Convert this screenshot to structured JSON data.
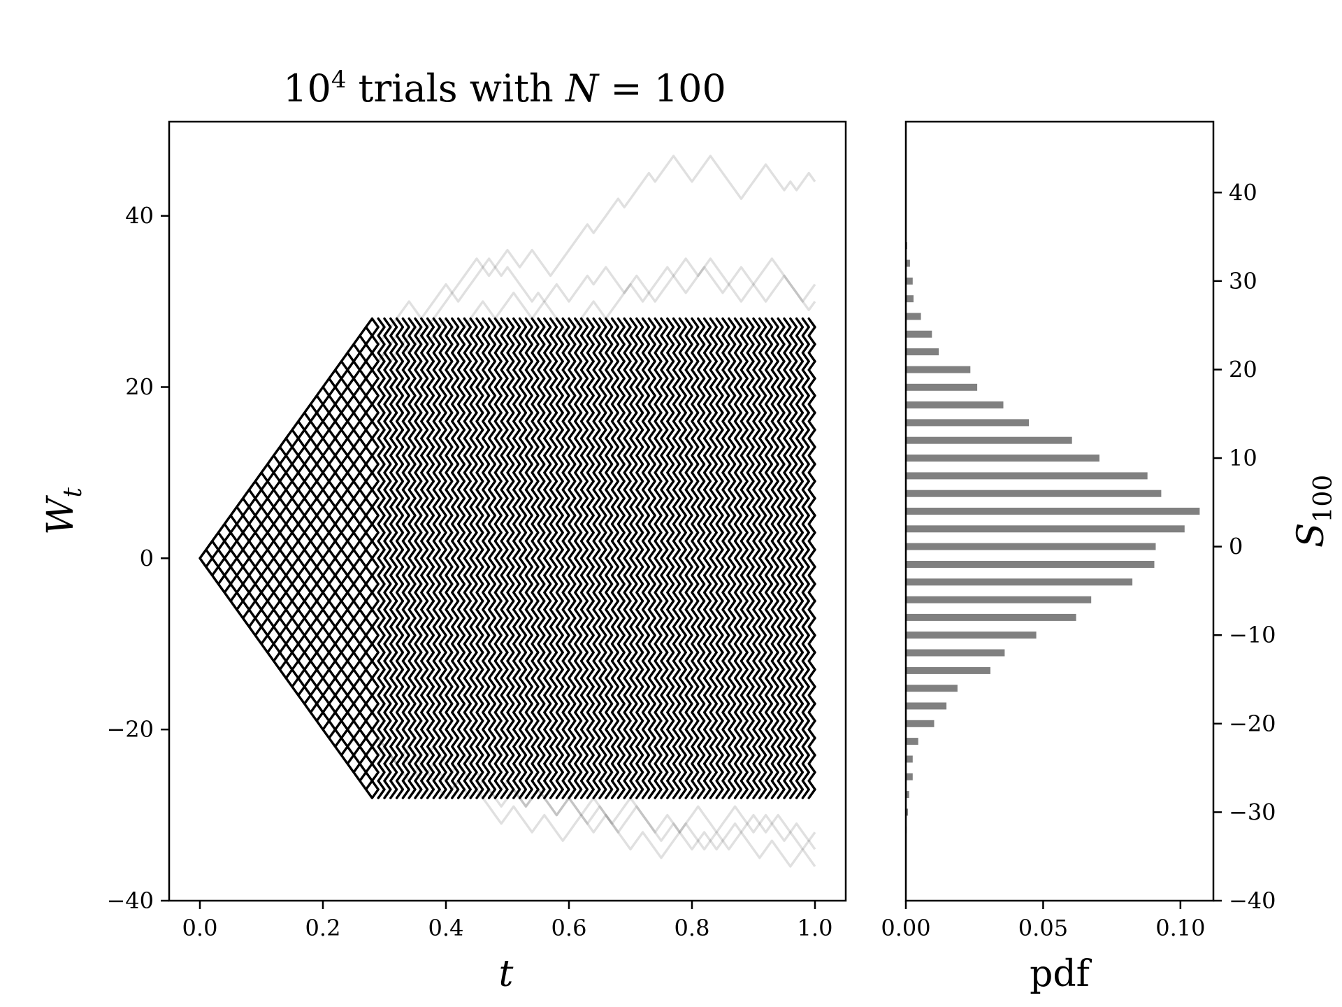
{
  "chart_data": [
    {
      "type": "line",
      "title_main": "10",
      "title_sup": "4",
      "title_rest": " trials with ",
      "title_var": "N",
      "title_eq": " = 100",
      "xlabel": "t",
      "ylabel_main": "W",
      "ylabel_sub": "t",
      "xlim": [
        -0.05,
        1.05
      ],
      "ylim": [
        -40,
        51
      ],
      "xticks": [
        "0.0",
        "0.2",
        "0.4",
        "0.6",
        "0.8",
        "1.0"
      ],
      "xtick_values": [
        0.0,
        0.2,
        0.4,
        0.6,
        0.8,
        1.0
      ],
      "yticks": [
        "−40",
        "−20",
        "0",
        "20",
        "40"
      ],
      "ytick_values": [
        -40,
        -20,
        0,
        20,
        40
      ],
      "steps": 100,
      "lattice_bound": [
        -28,
        28
      ],
      "line_color": "#000000",
      "series": [
        {
          "values": [
            0,
            1,
            2,
            3,
            4,
            5,
            6,
            7,
            8,
            9,
            10,
            11,
            12,
            13,
            14,
            15,
            16,
            17,
            18,
            17,
            16,
            17,
            18,
            19,
            20,
            21,
            20,
            21,
            22,
            23,
            24,
            25,
            26,
            25,
            24,
            25,
            26,
            27,
            28,
            29,
            30,
            31,
            32,
            33,
            34,
            35,
            34,
            33,
            34,
            35,
            36,
            35,
            34,
            35,
            36,
            35,
            34,
            33,
            34,
            35,
            36,
            37,
            38,
            39,
            38,
            39,
            40,
            41,
            42,
            41,
            42,
            43,
            44,
            45,
            44,
            45,
            46,
            47,
            46,
            45,
            44,
            45,
            46,
            47,
            46,
            45,
            44,
            43,
            42,
            43,
            44,
            45,
            46,
            45,
            44,
            43,
            44,
            43,
            44,
            45,
            44
          ]
        },
        {
          "values": [
            0,
            1,
            2,
            3,
            4,
            5,
            6,
            7,
            8,
            9,
            10,
            11,
            12,
            13,
            14,
            15,
            16,
            15,
            16,
            17,
            18,
            19,
            20,
            21,
            22,
            23,
            22,
            23,
            24,
            25,
            26,
            27,
            28,
            29,
            30,
            29,
            28,
            29,
            30,
            31,
            32,
            31,
            30,
            31,
            32,
            33,
            34,
            35,
            34,
            33,
            34,
            33,
            32,
            31,
            30,
            31,
            30,
            31,
            32,
            31,
            30,
            31,
            32,
            33,
            32,
            33,
            34,
            33,
            32,
            31,
            32,
            33,
            32,
            31,
            30,
            31,
            32,
            33,
            34,
            35,
            34,
            33,
            34,
            35,
            34,
            33,
            32,
            31,
            30,
            31,
            32,
            33,
            34,
            35,
            34,
            33,
            32,
            31,
            30,
            29,
            30
          ]
        },
        {
          "values": [
            0,
            1,
            2,
            3,
            4,
            5,
            6,
            7,
            8,
            9,
            10,
            11,
            12,
            13,
            12,
            13,
            14,
            15,
            16,
            17,
            18,
            17,
            16,
            17,
            18,
            19,
            20,
            21,
            22,
            23,
            24,
            23,
            24,
            25,
            26,
            27,
            26,
            25,
            26,
            27,
            28,
            27,
            26,
            27,
            28,
            29,
            30,
            29,
            28,
            29,
            30,
            31,
            30,
            29,
            28,
            29,
            30,
            29,
            28,
            27,
            26,
            27,
            28,
            29,
            30,
            29,
            28,
            29,
            30,
            31,
            32,
            31,
            30,
            31,
            32,
            33,
            34,
            33,
            32,
            31,
            32,
            33,
            34,
            33,
            32,
            31,
            32,
            33,
            34,
            33,
            32,
            31,
            30,
            31,
            32,
            33,
            32,
            31,
            30,
            31,
            32
          ]
        },
        {
          "values": [
            0,
            -1,
            -2,
            -3,
            -4,
            -5,
            -6,
            -7,
            -8,
            -9,
            -10,
            -11,
            -12,
            -13,
            -14,
            -15,
            -16,
            -17,
            -18,
            -17,
            -16,
            -17,
            -18,
            -19,
            -20,
            -21,
            -22,
            -23,
            -22,
            -21,
            -22,
            -23,
            -24,
            -23,
            -22,
            -23,
            -24,
            -23,
            -22,
            -23,
            -24,
            -25,
            -24,
            -23,
            -24,
            -25,
            -26,
            -27,
            -28,
            -27,
            -26,
            -27,
            -28,
            -29,
            -28,
            -27,
            -28,
            -29,
            -30,
            -29,
            -28,
            -29,
            -30,
            -31,
            -30,
            -29,
            -30,
            -31,
            -32,
            -31,
            -30,
            -29,
            -30,
            -31,
            -32,
            -33,
            -32,
            -31,
            -32,
            -33,
            -34,
            -33,
            -32,
            -33,
            -34,
            -33,
            -32,
            -31,
            -32,
            -33,
            -34,
            -35,
            -34,
            -33,
            -34,
            -35,
            -36,
            -35,
            -34,
            -35,
            -36
          ]
        },
        {
          "values": [
            0,
            -1,
            -2,
            -3,
            -4,
            -5,
            -6,
            -7,
            -8,
            -9,
            -10,
            -11,
            -12,
            -13,
            -14,
            -15,
            -16,
            -15,
            -16,
            -17,
            -18,
            -19,
            -20,
            -19,
            -20,
            -21,
            -22,
            -21,
            -20,
            -21,
            -22,
            -23,
            -24,
            -23,
            -24,
            -25,
            -26,
            -25,
            -24,
            -25,
            -26,
            -27,
            -26,
            -25,
            -26,
            -27,
            -28,
            -29,
            -30,
            -31,
            -30,
            -29,
            -30,
            -31,
            -32,
            -31,
            -30,
            -31,
            -32,
            -33,
            -32,
            -31,
            -30,
            -31,
            -32,
            -31,
            -30,
            -31,
            -32,
            -33,
            -34,
            -33,
            -32,
            -33,
            -34,
            -35,
            -34,
            -33,
            -32,
            -31,
            -32,
            -33,
            -34,
            -33,
            -32,
            -33,
            -34,
            -33,
            -32,
            -31,
            -30,
            -31,
            -32,
            -31,
            -30,
            -31,
            -32,
            -33,
            -34,
            -33,
            -34
          ]
        },
        {
          "values": [
            0,
            -1,
            -2,
            -3,
            -4,
            -5,
            -6,
            -7,
            -8,
            -9,
            -10,
            -11,
            -12,
            -13,
            -14,
            -13,
            -14,
            -15,
            -16,
            -17,
            -16,
            -17,
            -18,
            -19,
            -20,
            -21,
            -22,
            -21,
            -22,
            -23,
            -22,
            -23,
            -24,
            -25,
            -26,
            -25,
            -24,
            -25,
            -26,
            -27,
            -28,
            -27,
            -26,
            -27,
            -28,
            -27,
            -26,
            -27,
            -28,
            -29,
            -28,
            -27,
            -28,
            -29,
            -28,
            -27,
            -28,
            -29,
            -30,
            -29,
            -28,
            -29,
            -30,
            -29,
            -28,
            -29,
            -30,
            -31,
            -30,
            -29,
            -28,
            -29,
            -30,
            -31,
            -32,
            -31,
            -30,
            -31,
            -32,
            -31,
            -30,
            -29,
            -30,
            -31,
            -32,
            -31,
            -30,
            -29,
            -30,
            -31,
            -32,
            -31,
            -30,
            -31,
            -32,
            -33,
            -32,
            -31,
            -32,
            -33,
            -32
          ]
        }
      ]
    },
    {
      "type": "bar",
      "orientation": "horizontal",
      "xlabel": "pdf",
      "ylabel_main": "S",
      "ylabel_sub": "100",
      "xlim": [
        0,
        0.112
      ],
      "ylim": [
        -40,
        48
      ],
      "xticks": [
        "0.00",
        "0.05",
        "0.10"
      ],
      "xtick_values": [
        0.0,
        0.05,
        0.1
      ],
      "yticks": [
        "−40",
        "−30",
        "−20",
        "−10",
        "0",
        "10",
        "20",
        "30",
        "40"
      ],
      "ytick_values": [
        -40,
        -30,
        -20,
        -10,
        0,
        10,
        20,
        30,
        40
      ],
      "bar_color": "#808080",
      "categories": [
        34,
        32,
        30,
        28,
        26,
        24,
        22,
        20,
        18,
        16,
        14,
        12,
        10,
        8,
        6,
        4,
        2,
        0,
        -2,
        -4,
        -6,
        -8,
        -10,
        -12,
        -14,
        -16,
        -18,
        -20,
        -22,
        -24,
        -26,
        -28,
        -30,
        -32
      ],
      "values": [
        0.0005,
        0.0015,
        0.0025,
        0.0028,
        0.0055,
        0.0095,
        0.012,
        0.0235,
        0.026,
        0.0355,
        0.0448,
        0.0605,
        0.0705,
        0.088,
        0.093,
        0.107,
        0.1015,
        0.091,
        0.0905,
        0.0825,
        0.0675,
        0.062,
        0.0475,
        0.036,
        0.0308,
        0.0188,
        0.0148,
        0.0103,
        0.0045,
        0.0025,
        0.0025,
        0.0012,
        0.0008,
        0.0003
      ]
    }
  ]
}
